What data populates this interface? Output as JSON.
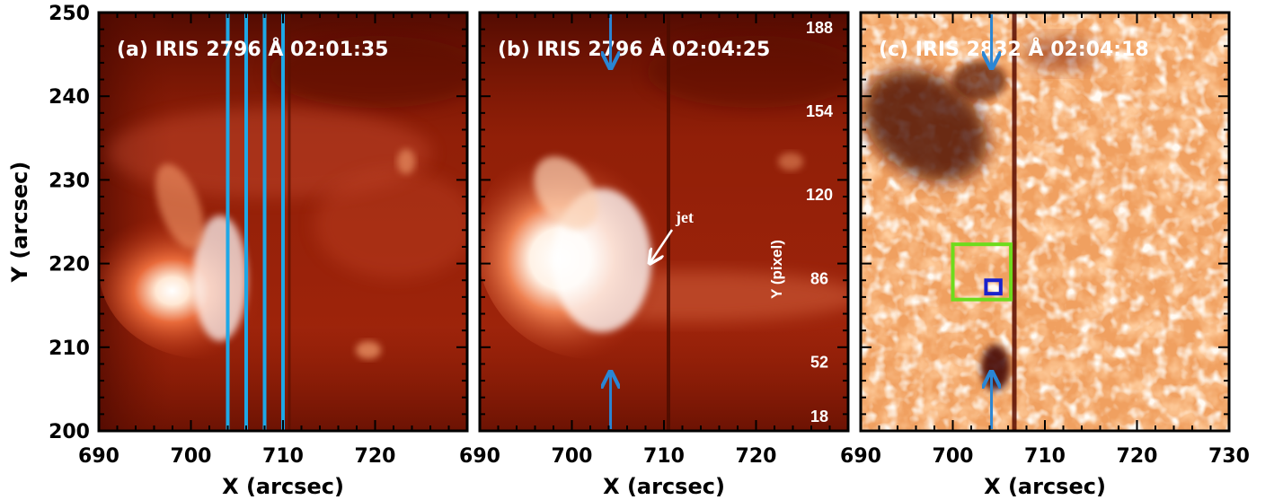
{
  "panels": [
    {
      "title": "(a) IRIS 2796 Å 02:01:35",
      "tone": "mgii",
      "variant": "a"
    },
    {
      "title": "(b) IRIS 2796 Å 02:04:25",
      "tone": "mgii",
      "variant": "b"
    },
    {
      "title": "(c) IRIS 2832 Å 02:04:18",
      "tone": "uv",
      "variant": "c"
    }
  ],
  "axes": {
    "x_label": "X (arcsec)",
    "y_label": "Y (arcsec)",
    "x_range": [
      690,
      720
    ],
    "x_range_c": [
      690,
      730
    ],
    "y_range": [
      200,
      250
    ],
    "x_ticks_ab": [
      "690",
      "700",
      "710",
      "720"
    ],
    "x_ticks_c": [
      "690",
      "700",
      "710",
      "720",
      "730"
    ],
    "y_ticks": [
      "200",
      "210",
      "220",
      "230",
      "240",
      "250"
    ],
    "y_tick_values": [
      200,
      210,
      220,
      230,
      240,
      250
    ]
  },
  "pixel_axis": {
    "label": "Y (pixel)",
    "ticks": [
      "18",
      "52",
      "86",
      "120",
      "154",
      "188"
    ],
    "tick_y_arcsec": [
      201.8,
      208.3,
      218.3,
      228.3,
      238.3,
      248.3
    ]
  },
  "annotations": {
    "jet_label": "jet",
    "slit_x_arcsec": [
      704,
      706,
      708,
      710
    ],
    "arrow_x_arcsec": 704.2,
    "green_box": {
      "x0": 700,
      "x1": 706.3,
      "y0": 215.7,
      "y1": 222.3
    },
    "blue_box": {
      "x0": 703.6,
      "x1": 705.2,
      "y0": 216.4,
      "y1": 218.0
    }
  },
  "colors": {
    "slit": "#1ea8e6",
    "arrow": "#2a86d4",
    "green_box": "#6ddc1c",
    "blue_box": "#1a22cc",
    "frame": "#000000",
    "mgii_bg": "#a4260c",
    "uv_bg": "#f0a060"
  }
}
